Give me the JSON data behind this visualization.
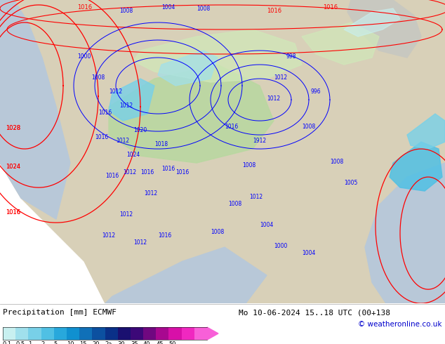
{
  "label_left": "Precipitation [mm] ECMWF",
  "label_right": "Mo 10-06-2024 15..18 UTC (00+138",
  "label_copyright": "© weatheronline.co.uk",
  "colorbar_tick_labels": [
    "0.1",
    "0.5",
    "1",
    "2",
    "5",
    "10",
    "15",
    "20",
    "2a",
    "30",
    "35",
    "40",
    "45",
    "50"
  ],
  "colorbar_colors": [
    "#c8f0f0",
    "#a0e0ec",
    "#78d0e8",
    "#50c0e4",
    "#28a8dc",
    "#1090d0",
    "#1070b8",
    "#0c50a0",
    "#0a3088",
    "#1a1070",
    "#3c0878",
    "#700880",
    "#a80890",
    "#d810a8",
    "#f028c0",
    "#f860d8"
  ],
  "bg_color": "#ffffff",
  "legend_bg": "#f0f0f0",
  "fig_width": 6.34,
  "fig_height": 4.9,
  "dpi": 100,
  "map_land_color": "#d8d0b8",
  "map_ocean_color": "#b8c8d8",
  "map_green_color": "#b8d8a0",
  "map_light_green": "#d0e8b8"
}
